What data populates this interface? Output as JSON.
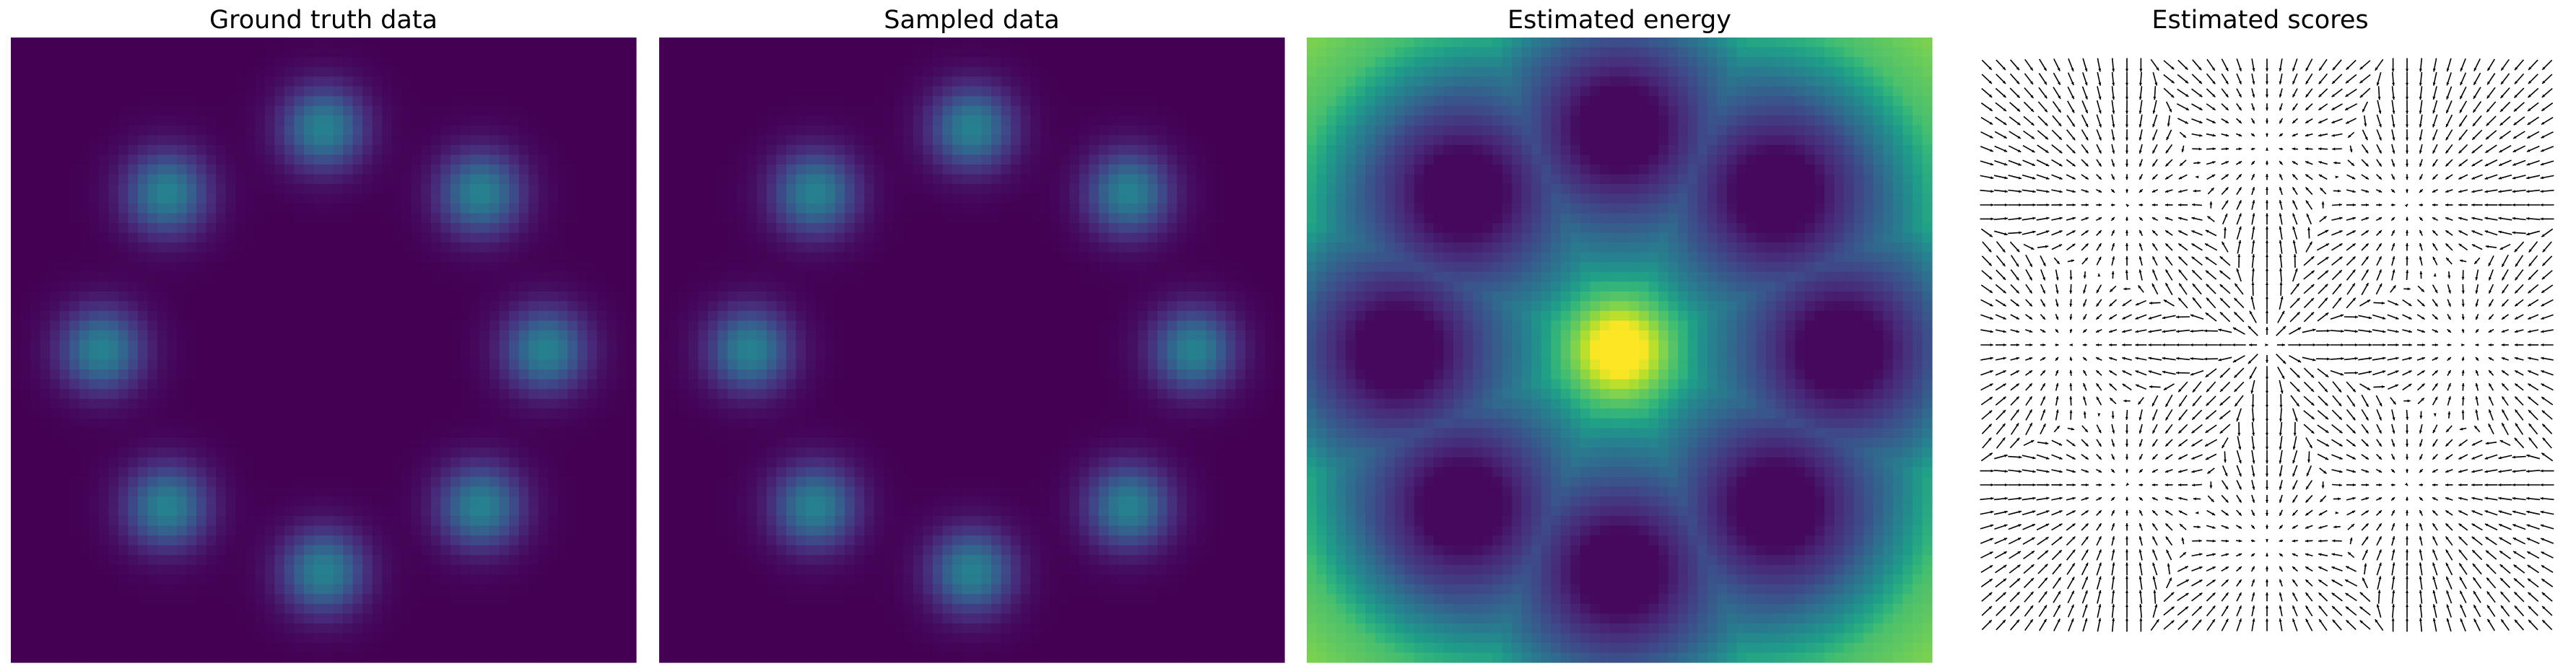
{
  "figure": {
    "colormap": "viridis",
    "background": "#ffffff"
  },
  "chart_data": [
    {
      "type": "heatmap",
      "title": "Ground truth data",
      "axes": "off",
      "grid": false,
      "description_kind": "2D histogram",
      "xlim": [
        -1.55,
        1.55
      ],
      "ylim": [
        -1.55,
        1.55
      ],
      "mixture": {
        "components": 8,
        "ring_radius": 1.1,
        "start_angle_deg": 0,
        "std": 0.14,
        "centers": [
          [
            1.1,
            0
          ],
          [
            0.778,
            0.778
          ],
          [
            0,
            1.1
          ],
          [
            -0.778,
            0.778
          ],
          [
            -1.1,
            0
          ],
          [
            -0.778,
            -0.778
          ],
          [
            0,
            -1.1
          ],
          [
            0.778,
            -0.778
          ]
        ]
      },
      "value_range": [
        0,
        1
      ]
    },
    {
      "type": "heatmap",
      "title": "Sampled data",
      "axes": "off",
      "grid": false,
      "description_kind": "2D histogram",
      "xlim": [
        -1.55,
        1.55
      ],
      "ylim": [
        -1.55,
        1.55
      ],
      "mixture": {
        "components": 8,
        "ring_radius": 1.1,
        "start_angle_deg": 0,
        "std": 0.14,
        "centers": [
          [
            1.1,
            0
          ],
          [
            0.778,
            0.778
          ],
          [
            0,
            1.1
          ],
          [
            -0.778,
            0.778
          ],
          [
            -1.1,
            0
          ],
          [
            -0.778,
            -0.778
          ],
          [
            0,
            -1.1
          ],
          [
            0.778,
            -0.778
          ]
        ]
      },
      "value_range": [
        0,
        1
      ]
    },
    {
      "type": "heatmap",
      "title": "Estimated energy",
      "axes": "off",
      "grid": false,
      "description_kind": "energy map",
      "xlim": [
        -1.55,
        1.55
      ],
      "ylim": [
        -1.55,
        1.55
      ],
      "energy": {
        "well_ring_radius": 1.1,
        "well_count": 8,
        "well_start_angle_deg": 0,
        "center_peak": 1.0,
        "corner_level": 0.7
      },
      "value_range": [
        0,
        1
      ]
    },
    {
      "type": "quiver",
      "title": "Estimated scores",
      "axes": "off",
      "grid": false,
      "xlim": [
        -1.55,
        1.55
      ],
      "ylim": [
        -1.55,
        1.55
      ],
      "grid_size": 41,
      "arrow_color": "#000000",
      "field": "gradient of log density of the 8-component ring mixture"
    }
  ]
}
